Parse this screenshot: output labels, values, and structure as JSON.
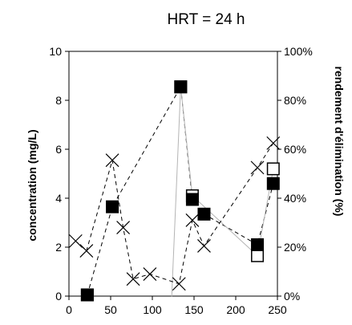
{
  "chart_data": {
    "type": "scatter",
    "title": "HRT = 24 h",
    "xlabel": "",
    "ylabel": "concentration (mg/L)",
    "y2label": "rendement d'élimination (%)",
    "xlim": [
      0,
      250
    ],
    "ylim": [
      0,
      10
    ],
    "y2lim": [
      0,
      100
    ],
    "x_ticks": [
      "0",
      "50",
      "100",
      "150",
      "200",
      "250"
    ],
    "y_ticks": [
      "0",
      "2",
      "4",
      "6",
      "8",
      "10"
    ],
    "y2_ticks": [
      "0%",
      "20%",
      "40%",
      "60%",
      "80%",
      "100%"
    ],
    "grid": false,
    "legend": "none",
    "series": [
      {
        "marker": "filled-square",
        "line": "dashed",
        "axis": "left",
        "color": "#000000",
        "x": [
          22,
          52,
          134,
          148,
          162,
          226,
          245
        ],
        "y": [
          0.05,
          3.65,
          8.55,
          3.95,
          3.35,
          2.1,
          4.6
        ]
      },
      {
        "marker": "open-square",
        "line": "solid",
        "axis": "left",
        "color": "#b4b4b4",
        "x": [
          22,
          62,
          122,
          134,
          148,
          226,
          245
        ],
        "y": [
          0.05,
          -1.0,
          -1.0,
          8.55,
          4.1,
          1.65,
          5.2
        ]
      },
      {
        "marker": "x",
        "line": "dashed",
        "axis": "right",
        "color": "#000000",
        "x": [
          8,
          21,
          52,
          65,
          77,
          97,
          132,
          148,
          162,
          226,
          245
        ],
        "y": [
          22.5,
          18.5,
          55.5,
          28,
          7,
          9,
          5,
          31,
          20.5,
          52.5,
          62.5
        ]
      }
    ]
  }
}
